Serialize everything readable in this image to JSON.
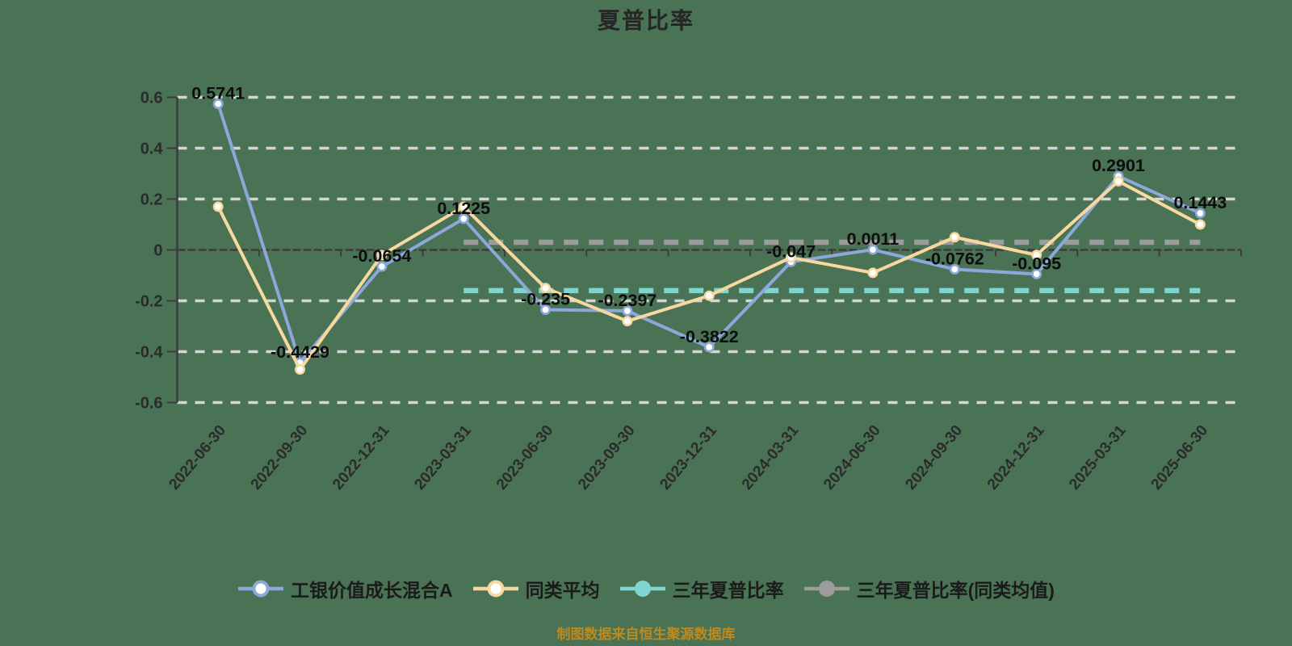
{
  "title": "夏普比率",
  "footer": {
    "text": "制图数据来自恒生聚源数据库"
  },
  "colors": {
    "background": "#4A7255",
    "grid": "#D5D5D5",
    "axis": "#3C3C3C",
    "tick_label": "#2B2B2B",
    "data_label": "#0D0D0D",
    "title": "#262626",
    "footer": "#BE8A1E",
    "legend_text": "#1B1B1B",
    "fund_line": "#8CA8D9",
    "peer_line": "#F7D9A0",
    "three_year_line": "#7FD6D0",
    "three_year_avg_line": "#9C9C9C",
    "marker_fill": "#FFFFFF"
  },
  "chart_data": {
    "type": "line",
    "title": "夏普比率",
    "categories": [
      "2022-06-30",
      "2022-09-30",
      "2022-12-31",
      "2023-03-31",
      "2023-06-30",
      "2023-09-30",
      "2023-12-31",
      "2024-03-31",
      "2024-06-30",
      "2024-09-30",
      "2024-12-31",
      "2025-03-31",
      "2025-06-30"
    ],
    "series": [
      {
        "name": "工银价值成长混合A",
        "type": "line",
        "color": "#8CA8D9",
        "marker": "hollow-circle",
        "values": [
          0.5741,
          -0.4429,
          -0.0654,
          0.1225,
          -0.235,
          -0.2397,
          -0.3822,
          -0.047,
          0.0011,
          -0.0762,
          -0.095,
          0.2901,
          0.1443
        ],
        "point_labels": [
          "0.5741",
          "-0.4429",
          "-0.0654",
          "0.1225",
          "-0.235",
          "-0.2397",
          "-0.3822",
          "-0.047",
          "0.0011",
          "-0.0762",
          "-0.095",
          "0.2901",
          "0.1443"
        ]
      },
      {
        "name": "同类平均",
        "type": "line",
        "color": "#F7D9A0",
        "marker": "hollow-circle",
        "values": [
          0.17,
          -0.47,
          -0.02,
          0.17,
          -0.15,
          -0.28,
          -0.18,
          -0.03,
          -0.09,
          0.05,
          -0.02,
          0.27,
          0.1
        ],
        "point_labels": []
      },
      {
        "name": "三年夏普比率",
        "type": "hline",
        "color": "#7FD6D0",
        "marker": "solid-circle",
        "value": -0.16,
        "span_categories": [
          3,
          12
        ]
      },
      {
        "name": "三年夏普比率(同类均值)",
        "type": "hline",
        "color": "#9C9C9C",
        "marker": "solid-circle",
        "value": 0.03,
        "span_categories": [
          3,
          12
        ]
      }
    ],
    "ylim": [
      -0.6,
      0.6
    ],
    "y_tick_labels": [
      "0.6",
      "0.4",
      "0.2",
      "0",
      "-0.2",
      "-0.4",
      "-0.6"
    ],
    "grid": "horizontal-dashed",
    "legend_position": "bottom",
    "x_label_rotation_deg": -50
  }
}
